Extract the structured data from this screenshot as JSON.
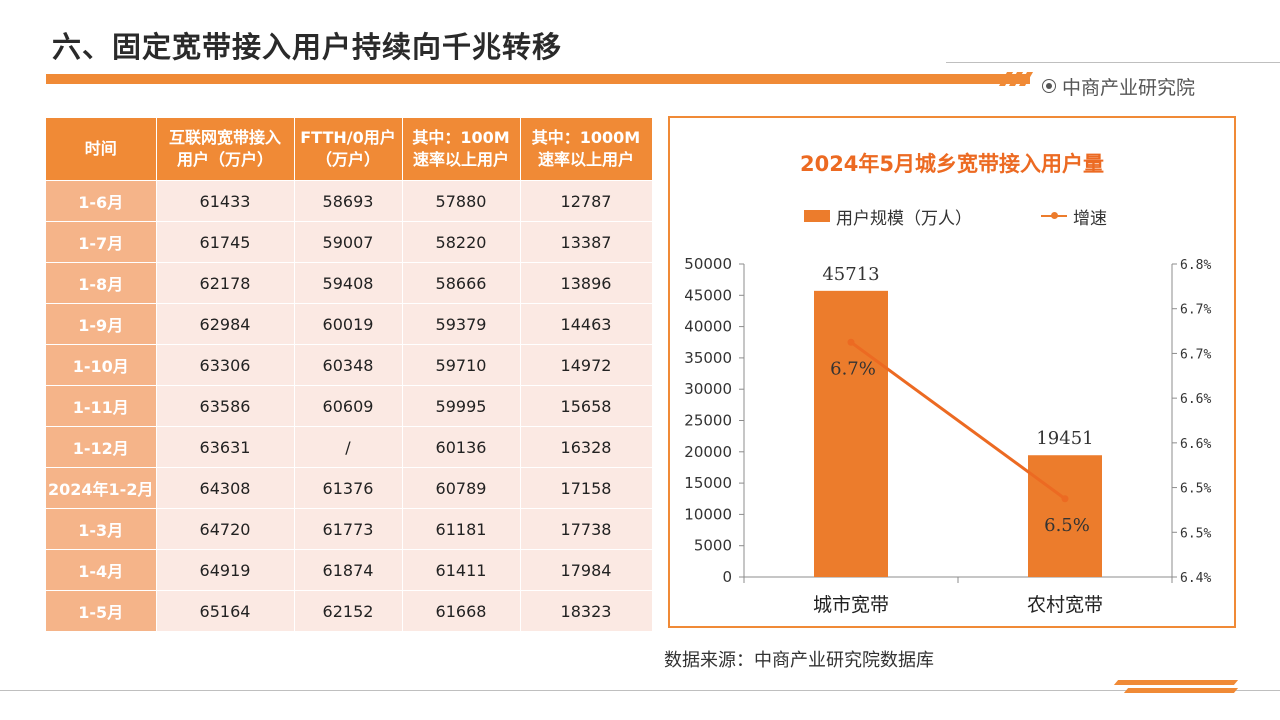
{
  "page": {
    "title": "六、固定宽带接入用户持续向千兆转移",
    "brand": "中商产业研究院",
    "source": "数据来源：中商产业研究院数据库"
  },
  "table": {
    "headers": [
      "时间",
      "互联网宽带接入\n用户（万户）",
      "FTTH/0用户\n（万户）",
      "其中：100M\n速率以上用户",
      "其中：1000M\n速率以上用户"
    ],
    "rows": [
      [
        "1-6月",
        "61433",
        "58693",
        "57880",
        "12787"
      ],
      [
        "1-7月",
        "61745",
        "59007",
        "58220",
        "13387"
      ],
      [
        "1-8月",
        "62178",
        "59408",
        "58666",
        "13896"
      ],
      [
        "1-9月",
        "62984",
        "60019",
        "59379",
        "14463"
      ],
      [
        "1-10月",
        "63306",
        "60348",
        "59710",
        "14972"
      ],
      [
        "1-11月",
        "63586",
        "60609",
        "59995",
        "15658"
      ],
      [
        "1-12月",
        "63631",
        "/",
        "60136",
        "16328"
      ],
      [
        "2024年1-2月",
        "64308",
        "61376",
        "60789",
        "17158"
      ],
      [
        "1-3月",
        "64720",
        "61773",
        "61181",
        "17738"
      ],
      [
        "1-4月",
        "64919",
        "61874",
        "61411",
        "17984"
      ],
      [
        "1-5月",
        "65164",
        "62152",
        "61668",
        "18323"
      ]
    ]
  },
  "chart_data": {
    "type": "bar",
    "title": "2024年5月城乡宽带接入用户量",
    "categories": [
      "城市宽带",
      "农村宽带"
    ],
    "series": [
      {
        "name": "用户规模（万人）",
        "type": "bar",
        "values": [
          45713,
          19451
        ],
        "labels": [
          "45713",
          "19451"
        ],
        "axis": "left"
      },
      {
        "name": "增速",
        "type": "line",
        "values": [
          6.7,
          6.5
        ],
        "labels": [
          "6.7%",
          "6.5%"
        ],
        "axis": "right"
      }
    ],
    "y_left": {
      "min": 0,
      "max": 50000,
      "ticks": [
        "0",
        "5000",
        "10000",
        "15000",
        "20000",
        "25000",
        "30000",
        "35000",
        "40000",
        "45000",
        "50000"
      ]
    },
    "y_right": {
      "min": 6.4,
      "max": 6.8,
      "ticks": [
        "6.4%",
        "6.5%",
        "6.5%",
        "6.6%",
        "6.6%",
        "6.7%",
        "6.7%",
        "6.8%"
      ]
    },
    "colors": {
      "bar": "#ec7c2c",
      "line": "#ec6a22",
      "accent": "#f08a36"
    },
    "legend_position": "top"
  }
}
